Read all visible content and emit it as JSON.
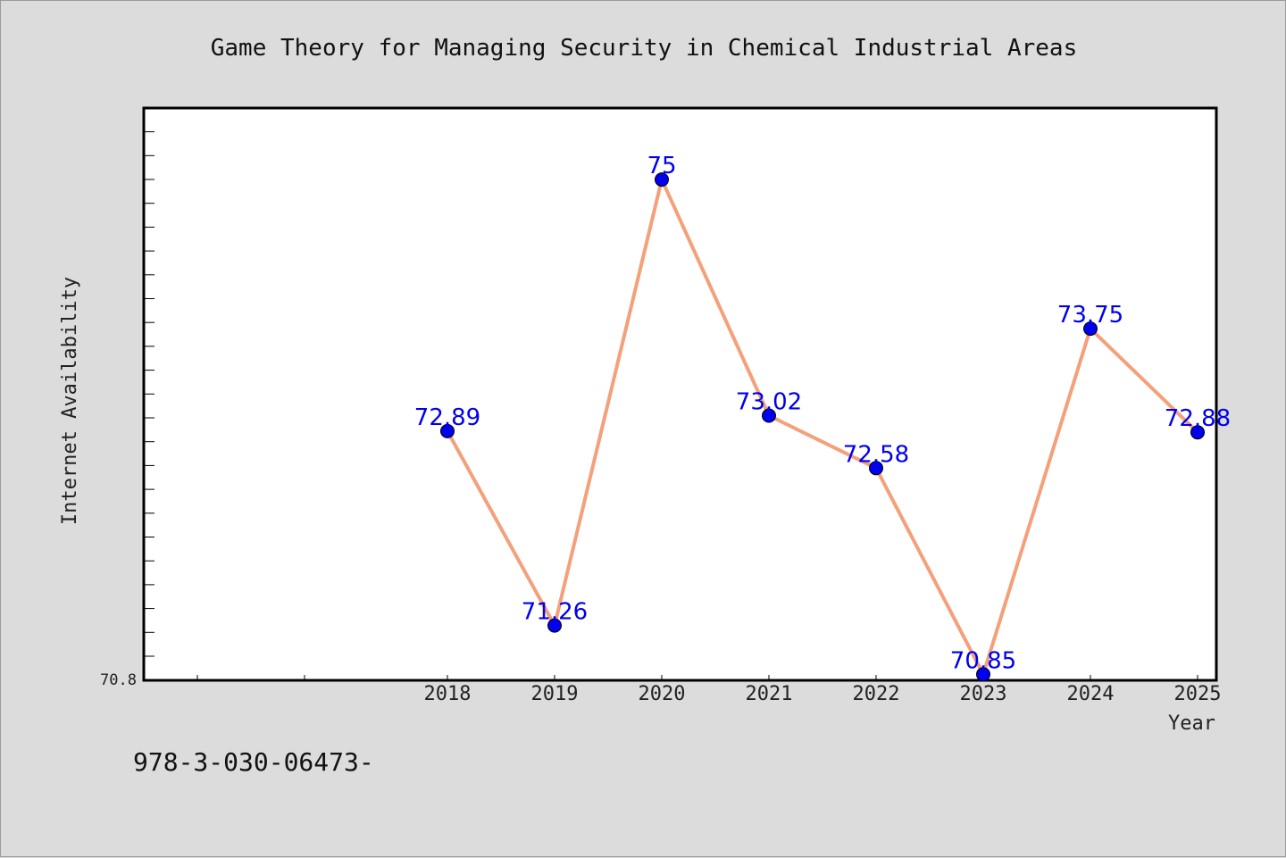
{
  "chart_data": {
    "type": "line",
    "title": "Game Theory for Managing Security in Chemical Industrial Areas",
    "xlabel": "Year",
    "ylabel": "Internet Availability",
    "categories": [
      "2018",
      "2019",
      "2020",
      "2021",
      "2022",
      "2023",
      "2024",
      "2025"
    ],
    "series": [
      {
        "values": [
          72.89,
          71.26,
          75,
          73.02,
          72.58,
          70.85,
          73.75,
          72.88
        ],
        "labels": [
          "72.89",
          "71.26",
          "75",
          "73.02",
          "72.58",
          "70.85",
          "73.75",
          "72.88"
        ]
      }
    ],
    "y_tick_labels": [
      "70.8"
    ],
    "ylim": [
      70.8,
      75.6
    ],
    "grid": false,
    "legend": "none",
    "colors": {
      "line": "#f4a07a",
      "marker": "#0000ee",
      "data_label": "#0000ee",
      "background": "#dcdcdc",
      "plot_background": "#ffffff"
    }
  },
  "footer": {
    "text": "978-3-030-06473-"
  }
}
